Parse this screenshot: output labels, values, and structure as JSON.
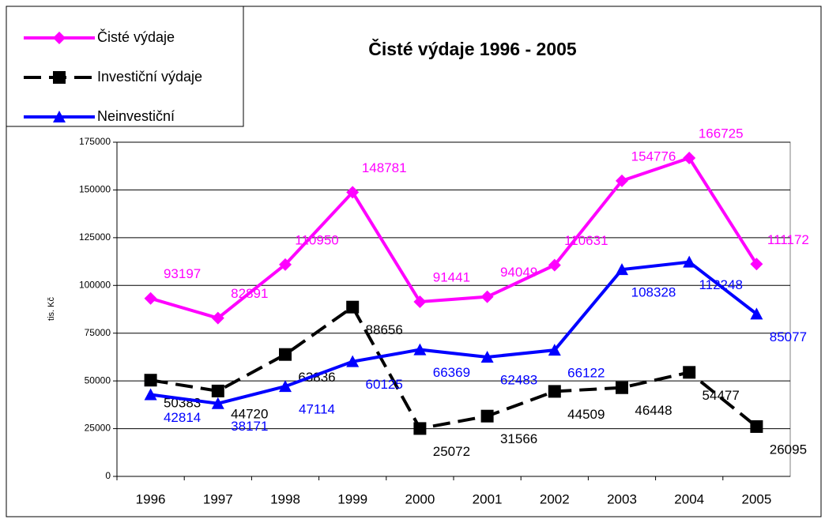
{
  "chart_data": {
    "type": "line",
    "title": "Čisté výdaje 1996 - 2005",
    "y_label": "tis. Kč",
    "categories": [
      "1996",
      "1997",
      "1998",
      "1999",
      "2000",
      "2001",
      "2002",
      "2003",
      "2004",
      "2005"
    ],
    "series": [
      {
        "name": "Čisté výdaje",
        "color": "#ff00ff",
        "marker": "diamond",
        "dashed": false,
        "values": [
          93197,
          82891,
          110950,
          148781,
          91441,
          94049,
          110631,
          154776,
          166725,
          111172
        ]
      },
      {
        "name": "Investiční výdaje",
        "color": "#000000",
        "marker": "square",
        "dashed": true,
        "values": [
          50383,
          44720,
          63836,
          88656,
          25072,
          31566,
          44509,
          46448,
          54477,
          26095
        ]
      },
      {
        "name": "Neinvestiční",
        "color": "#0000ff",
        "marker": "triangle",
        "dashed": false,
        "values": [
          42814,
          38171,
          47114,
          60125,
          66369,
          62483,
          66122,
          108328,
          112248,
          85077
        ]
      }
    ],
    "ylim": [
      0,
      175000
    ],
    "yticks": [
      0,
      25000,
      50000,
      75000,
      100000,
      125000,
      150000,
      175000
    ],
    "grid": true,
    "legend": "top-left"
  }
}
